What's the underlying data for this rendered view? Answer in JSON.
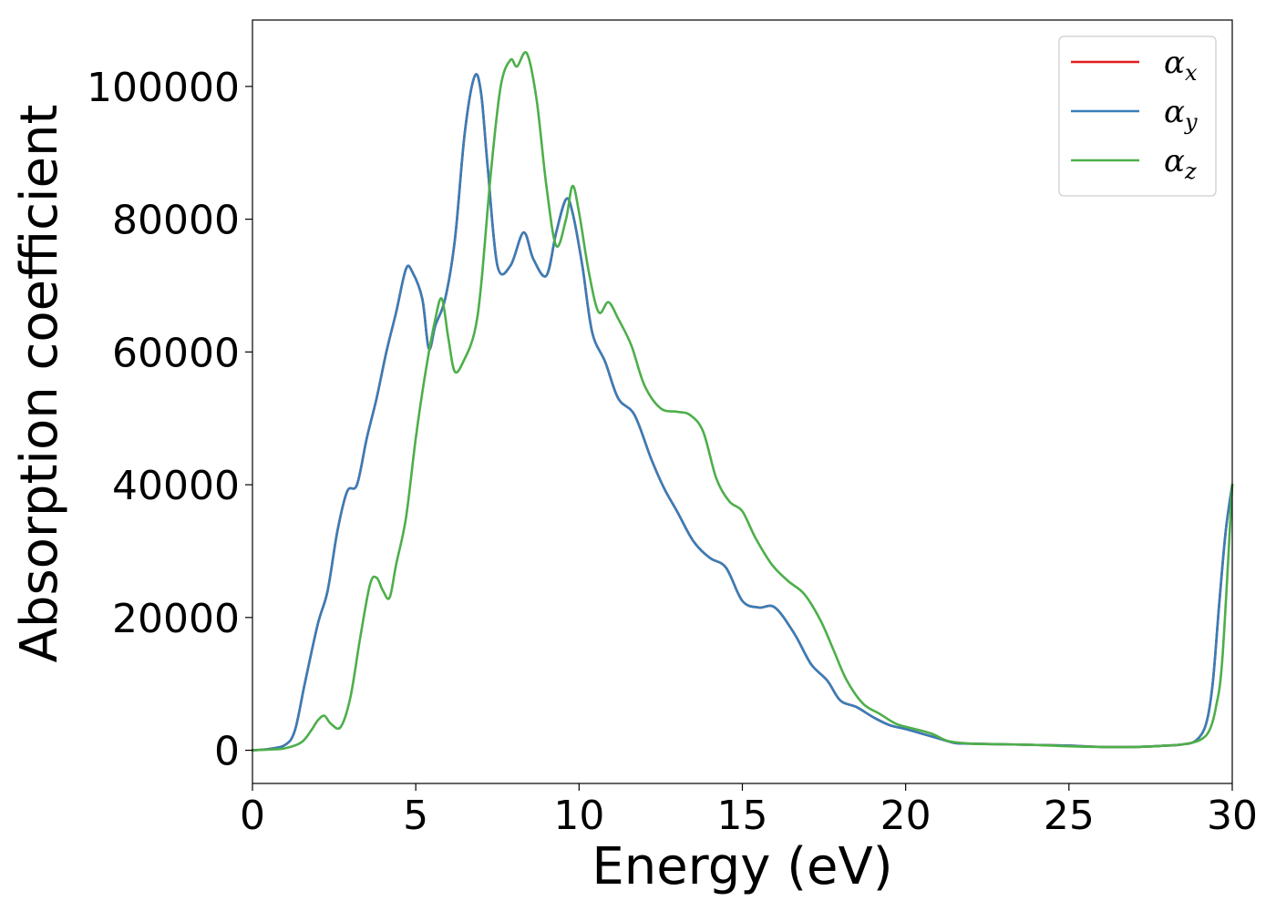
{
  "chart_data": {
    "type": "line",
    "xlabel": "Energy (eV)",
    "ylabel": "Absorption coefficient",
    "xlim": [
      0,
      30
    ],
    "ylim": [
      -5000,
      110000
    ],
    "xticks": [
      0,
      5,
      10,
      15,
      20,
      25,
      30
    ],
    "yticks": [
      0,
      20000,
      40000,
      60000,
      80000,
      100000
    ],
    "grid": false,
    "legend_position": "top-right",
    "series": [
      {
        "name": "αx",
        "symbol": "α",
        "subscript": "x",
        "color": "#e41a1c",
        "x": [
          0,
          0.5,
          1.0,
          1.3,
          1.6,
          2.0,
          2.3,
          2.6,
          2.9,
          3.2,
          3.5,
          3.8,
          4.1,
          4.4,
          4.7,
          4.9,
          5.2,
          5.4,
          5.6,
          5.9,
          6.2,
          6.5,
          6.8,
          7.0,
          7.2,
          7.5,
          7.9,
          8.3,
          8.6,
          9.0,
          9.3,
          9.6,
          9.8,
          10.1,
          10.4,
          10.8,
          11.2,
          11.7,
          12.2,
          12.6,
          13.0,
          13.5,
          14.0,
          14.5,
          15.0,
          15.5,
          16.0,
          16.6,
          17.1,
          17.6,
          18.0,
          18.5,
          19.0,
          19.5,
          20.0,
          20.5,
          21.0,
          21.5,
          22.0,
          23.0,
          24.0,
          25.0,
          26.0,
          27.0,
          28.0,
          28.5,
          28.9,
          29.2,
          29.4,
          29.6,
          29.8,
          30.0
        ],
        "y": [
          0,
          200,
          800,
          3000,
          10000,
          19000,
          24000,
          33000,
          39000,
          40000,
          47000,
          53000,
          60000,
          66000,
          72500,
          72000,
          68000,
          60500,
          64000,
          68000,
          77000,
          93000,
          101500,
          99000,
          88000,
          73000,
          73000,
          78000,
          74000,
          71500,
          78000,
          83000,
          81000,
          73000,
          63000,
          58500,
          53000,
          50500,
          44000,
          39500,
          36000,
          31500,
          29000,
          27500,
          22500,
          21500,
          21500,
          17500,
          13000,
          10500,
          7500,
          6500,
          5000,
          3800,
          3200,
          2500,
          1800,
          1100,
          1000,
          900,
          800,
          700,
          500,
          500,
          700,
          900,
          1500,
          4000,
          10000,
          22000,
          33000,
          40000
        ]
      },
      {
        "name": "αy",
        "symbol": "α",
        "subscript": "y",
        "color": "#377eb8",
        "x": [
          0,
          0.5,
          1.0,
          1.3,
          1.6,
          2.0,
          2.3,
          2.6,
          2.9,
          3.2,
          3.5,
          3.8,
          4.1,
          4.4,
          4.7,
          4.9,
          5.2,
          5.4,
          5.6,
          5.9,
          6.2,
          6.5,
          6.8,
          7.0,
          7.2,
          7.5,
          7.9,
          8.3,
          8.6,
          9.0,
          9.3,
          9.6,
          9.8,
          10.1,
          10.4,
          10.8,
          11.2,
          11.7,
          12.2,
          12.6,
          13.0,
          13.5,
          14.0,
          14.5,
          15.0,
          15.5,
          16.0,
          16.6,
          17.1,
          17.6,
          18.0,
          18.5,
          19.0,
          19.5,
          20.0,
          20.5,
          21.0,
          21.5,
          22.0,
          23.0,
          24.0,
          25.0,
          26.0,
          27.0,
          28.0,
          28.5,
          28.9,
          29.2,
          29.4,
          29.6,
          29.8,
          30.0
        ],
        "y": [
          0,
          200,
          800,
          3000,
          10000,
          19000,
          24000,
          33000,
          39000,
          40000,
          47000,
          53000,
          60000,
          66000,
          72500,
          72000,
          68000,
          60500,
          64000,
          68000,
          77000,
          93000,
          101500,
          99000,
          88000,
          73000,
          73000,
          78000,
          74000,
          71500,
          78000,
          83000,
          81000,
          73000,
          63000,
          58500,
          53000,
          50500,
          44000,
          39500,
          36000,
          31500,
          29000,
          27500,
          22500,
          21500,
          21500,
          17500,
          13000,
          10500,
          7500,
          6500,
          5000,
          3800,
          3200,
          2500,
          1800,
          1100,
          1000,
          900,
          800,
          700,
          500,
          500,
          700,
          900,
          1500,
          4000,
          10000,
          22000,
          33000,
          40000
        ]
      },
      {
        "name": "αz",
        "symbol": "α",
        "subscript": "z",
        "color": "#4daf4a",
        "x": [
          0,
          0.5,
          1.0,
          1.5,
          1.8,
          2.0,
          2.2,
          2.4,
          2.7,
          3.0,
          3.3,
          3.6,
          3.8,
          4.0,
          4.2,
          4.4,
          4.7,
          5.0,
          5.3,
          5.6,
          5.8,
          6.0,
          6.2,
          6.5,
          6.8,
          7.0,
          7.3,
          7.6,
          7.9,
          8.1,
          8.4,
          8.7,
          9.0,
          9.3,
          9.6,
          9.8,
          10.0,
          10.3,
          10.6,
          10.9,
          11.2,
          11.6,
          12.0,
          12.5,
          13.0,
          13.4,
          13.8,
          14.2,
          14.6,
          15.0,
          15.4,
          15.9,
          16.4,
          16.9,
          17.4,
          17.8,
          18.2,
          18.7,
          19.2,
          19.7,
          20.2,
          20.8,
          21.3,
          22.0,
          23.0,
          24.0,
          25.0,
          26.0,
          27.0,
          28.0,
          28.5,
          29.0,
          29.3,
          29.5,
          29.7,
          30.0
        ],
        "y": [
          0,
          100,
          300,
          1200,
          3000,
          4500,
          5200,
          4000,
          3500,
          8000,
          17000,
          25000,
          26000,
          24000,
          23000,
          28000,
          35000,
          47000,
          57000,
          65000,
          68000,
          62000,
          57000,
          59000,
          63000,
          70000,
          87000,
          100000,
          104000,
          103000,
          105000,
          98000,
          85000,
          76000,
          80000,
          85000,
          81000,
          72000,
          66000,
          67500,
          65000,
          61000,
          55000,
          51500,
          51000,
          50500,
          48000,
          41000,
          37500,
          36000,
          32000,
          28000,
          25500,
          23500,
          19500,
          15000,
          10500,
          7000,
          5500,
          4000,
          3300,
          2500,
          1400,
          1000,
          900,
          800,
          600,
          500,
          500,
          700,
          900,
          1500,
          3000,
          6500,
          14000,
          40000
        ]
      }
    ]
  }
}
